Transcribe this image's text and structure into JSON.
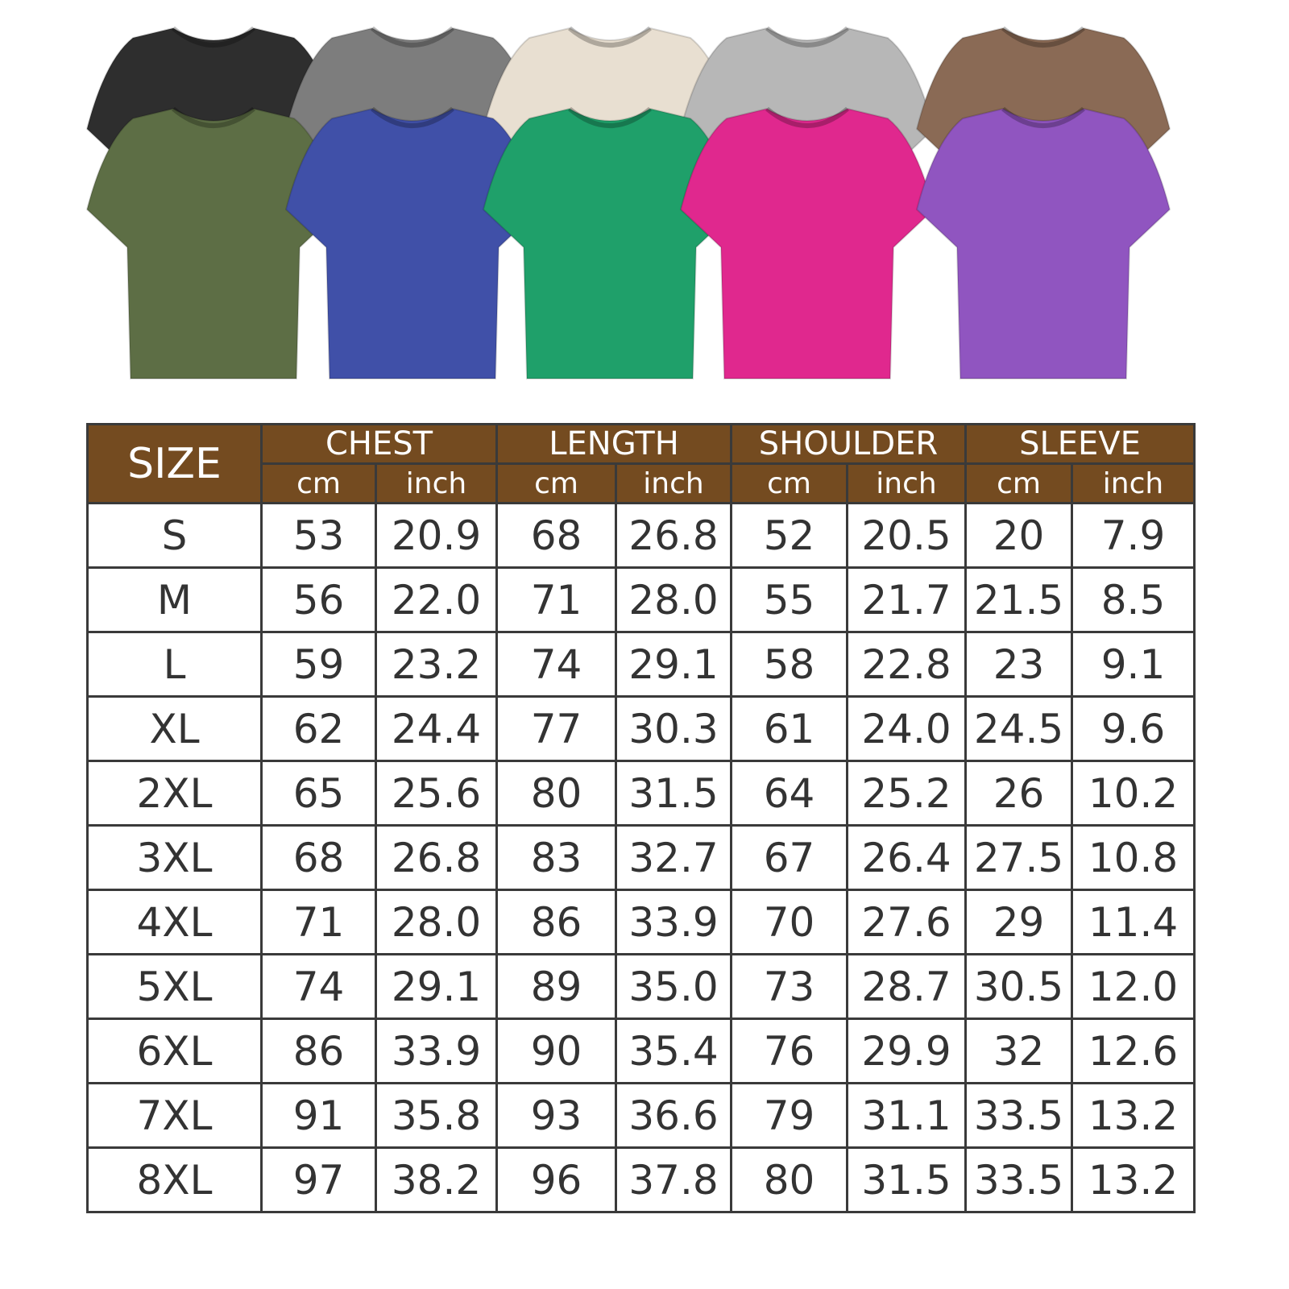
{
  "shirts": {
    "back_row": [
      {
        "color": "#2e2e2e"
      },
      {
        "color": "#7d7d7d"
      },
      {
        "color": "#e8dfd1"
      },
      {
        "color": "#b7b7b7"
      },
      {
        "color": "#8a6a55"
      }
    ],
    "front_row": [
      {
        "color": "#5d6e45"
      },
      {
        "color": "#4050a8"
      },
      {
        "color": "#1fa06a"
      },
      {
        "color": "#e0288e"
      },
      {
        "color": "#9055c0"
      }
    ]
  },
  "table": {
    "size_label": "SIZE",
    "groups": [
      "CHEST",
      "LENGTH",
      "SHOULDER",
      "SLEEVE"
    ],
    "units": [
      "cm",
      "inch",
      "cm",
      "inch",
      "cm",
      "inch",
      "cm",
      "inch"
    ],
    "header_color": "#744b20",
    "rows": [
      [
        "S",
        "53",
        "20.9",
        "68",
        "26.8",
        "52",
        "20.5",
        "20",
        "7.9"
      ],
      [
        "M",
        "56",
        "22.0",
        "71",
        "28.0",
        "55",
        "21.7",
        "21.5",
        "8.5"
      ],
      [
        "L",
        "59",
        "23.2",
        "74",
        "29.1",
        "58",
        "22.8",
        "23",
        "9.1"
      ],
      [
        "XL",
        "62",
        "24.4",
        "77",
        "30.3",
        "61",
        "24.0",
        "24.5",
        "9.6"
      ],
      [
        "2XL",
        "65",
        "25.6",
        "80",
        "31.5",
        "64",
        "25.2",
        "26",
        "10.2"
      ],
      [
        "3XL",
        "68",
        "26.8",
        "83",
        "32.7",
        "67",
        "26.4",
        "27.5",
        "10.8"
      ],
      [
        "4XL",
        "71",
        "28.0",
        "86",
        "33.9",
        "70",
        "27.6",
        "29",
        "11.4"
      ],
      [
        "5XL",
        "74",
        "29.1",
        "89",
        "35.0",
        "73",
        "28.7",
        "30.5",
        "12.0"
      ],
      [
        "6XL",
        "86",
        "33.9",
        "90",
        "35.4",
        "76",
        "29.9",
        "32",
        "12.6"
      ],
      [
        "7XL",
        "91",
        "35.8",
        "93",
        "36.6",
        "79",
        "31.1",
        "33.5",
        "13.2"
      ],
      [
        "8XL",
        "97",
        "38.2",
        "96",
        "37.8",
        "80",
        "31.5",
        "33.5",
        "13.2"
      ]
    ]
  }
}
